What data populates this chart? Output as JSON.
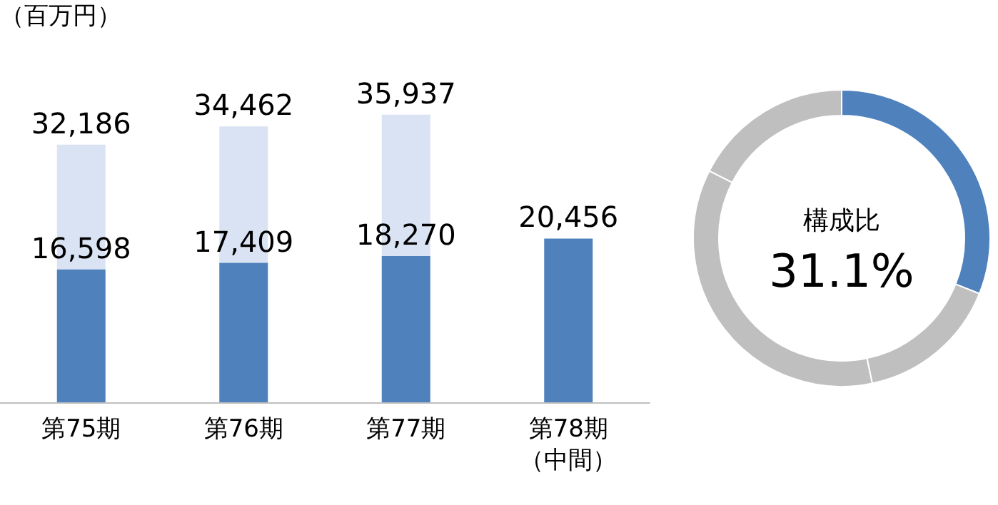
{
  "chart_data": [
    {
      "type": "bar",
      "ylabel": "（百万円）",
      "categories": [
        "第75期",
        "第76期",
        "第77期",
        "第78期（中間）"
      ],
      "stacked": true,
      "series": [
        {
          "color": "#4f81bd",
          "values": [
            16598,
            17409,
            18270,
            20456
          ],
          "value_labels": [
            "16,598",
            "17,409",
            "18,270",
            null
          ]
        },
        {
          "color": "#dae3f3",
          "values": [
            15588,
            17053,
            17667,
            null
          ]
        }
      ],
      "totals": [
        "32,186",
        "34,462",
        "35,937",
        "20,456"
      ]
    },
    {
      "type": "donut",
      "categories": [
        null,
        null,
        null,
        null
      ],
      "values": [
        31.1,
        15.6,
        35.8,
        17.5
      ],
      "colors": [
        "#4f81bd",
        "#bfbfbf",
        "#bfbfbf",
        "#bfbfbf"
      ],
      "annotations": [
        "構成比",
        "31.1%"
      ]
    }
  ]
}
